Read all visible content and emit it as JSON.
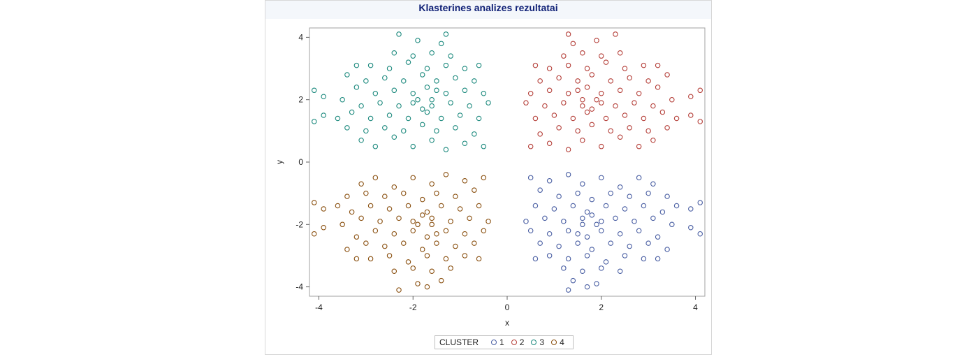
{
  "chart_data": {
    "type": "scatter",
    "title": "Klasterines analizes rezultatai",
    "xlabel": "x",
    "ylabel": "y",
    "xlim": [
      -4.2,
      4.2
    ],
    "ylim": [
      -4.3,
      4.3
    ],
    "xticks": [
      -4,
      -2,
      0,
      2,
      4
    ],
    "yticks": [
      -4,
      -2,
      0,
      2,
      4
    ],
    "grid": false,
    "legend": {
      "title": "CLUSTER",
      "placement": "bottom-center",
      "entries": [
        "1",
        "2",
        "3",
        "4"
      ]
    },
    "series": [
      {
        "name": "1",
        "color": "#4a5fa3",
        "points": [
          [
            0.5,
            -0.5
          ],
          [
            0.9,
            -0.6
          ],
          [
            1.3,
            -0.4
          ],
          [
            1.6,
            -0.7
          ],
          [
            2.0,
            -0.5
          ],
          [
            2.4,
            -0.8
          ],
          [
            2.8,
            -0.5
          ],
          [
            3.1,
            -0.7
          ],
          [
            0.7,
            -0.9
          ],
          [
            1.1,
            -1.1
          ],
          [
            1.5,
            -1.0
          ],
          [
            1.8,
            -1.2
          ],
          [
            2.2,
            -1.0
          ],
          [
            2.6,
            -1.1
          ],
          [
            3.0,
            -1.0
          ],
          [
            3.4,
            -1.1
          ],
          [
            0.6,
            -1.4
          ],
          [
            1.0,
            -1.5
          ],
          [
            1.4,
            -1.4
          ],
          [
            1.7,
            -1.6
          ],
          [
            2.1,
            -1.4
          ],
          [
            2.5,
            -1.5
          ],
          [
            2.9,
            -1.4
          ],
          [
            3.3,
            -1.6
          ],
          [
            3.6,
            -1.4
          ],
          [
            0.8,
            -1.8
          ],
          [
            1.2,
            -1.9
          ],
          [
            1.6,
            -1.8
          ],
          [
            1.9,
            -2.0
          ],
          [
            2.3,
            -1.8
          ],
          [
            2.7,
            -1.9
          ],
          [
            3.1,
            -1.8
          ],
          [
            3.5,
            -2.0
          ],
          [
            0.5,
            -2.2
          ],
          [
            0.9,
            -2.3
          ],
          [
            1.3,
            -2.2
          ],
          [
            1.7,
            -2.4
          ],
          [
            2.0,
            -2.2
          ],
          [
            2.4,
            -2.3
          ],
          [
            2.8,
            -2.2
          ],
          [
            3.2,
            -2.4
          ],
          [
            0.7,
            -2.6
          ],
          [
            1.1,
            -2.7
          ],
          [
            1.5,
            -2.6
          ],
          [
            1.8,
            -2.8
          ],
          [
            2.2,
            -2.6
          ],
          [
            2.6,
            -2.7
          ],
          [
            3.0,
            -2.6
          ],
          [
            3.4,
            -2.8
          ],
          [
            0.9,
            -3.0
          ],
          [
            1.3,
            -3.1
          ],
          [
            1.7,
            -3.0
          ],
          [
            2.1,
            -3.2
          ],
          [
            2.5,
            -3.0
          ],
          [
            2.9,
            -3.1
          ],
          [
            1.2,
            -3.4
          ],
          [
            1.6,
            -3.5
          ],
          [
            2.0,
            -3.4
          ],
          [
            2.4,
            -3.5
          ],
          [
            1.4,
            -3.8
          ],
          [
            1.9,
            -3.9
          ],
          [
            1.6,
            -2.0
          ],
          [
            1.8,
            -1.7
          ],
          [
            1.5,
            -2.3
          ],
          [
            2.0,
            -1.9
          ],
          [
            3.9,
            -1.5
          ],
          [
            4.1,
            -1.3
          ],
          [
            3.9,
            -2.1
          ],
          [
            4.1,
            -2.3
          ],
          [
            1.3,
            -4.1
          ],
          [
            1.7,
            -4.0
          ],
          [
            0.4,
            -1.9
          ],
          [
            0.6,
            -3.1
          ],
          [
            3.2,
            -3.1
          ]
        ]
      },
      {
        "name": "2",
        "color": "#b5403a",
        "points": [
          [
            0.5,
            0.5
          ],
          [
            0.9,
            0.6
          ],
          [
            1.3,
            0.4
          ],
          [
            1.6,
            0.7
          ],
          [
            2.0,
            0.5
          ],
          [
            2.4,
            0.8
          ],
          [
            2.8,
            0.5
          ],
          [
            3.1,
            0.7
          ],
          [
            0.7,
            0.9
          ],
          [
            1.1,
            1.1
          ],
          [
            1.5,
            1.0
          ],
          [
            1.8,
            1.2
          ],
          [
            2.2,
            1.0
          ],
          [
            2.6,
            1.1
          ],
          [
            3.0,
            1.0
          ],
          [
            3.4,
            1.1
          ],
          [
            0.6,
            1.4
          ],
          [
            1.0,
            1.5
          ],
          [
            1.4,
            1.4
          ],
          [
            1.7,
            1.6
          ],
          [
            2.1,
            1.4
          ],
          [
            2.5,
            1.5
          ],
          [
            2.9,
            1.4
          ],
          [
            3.3,
            1.6
          ],
          [
            3.6,
            1.4
          ],
          [
            0.8,
            1.8
          ],
          [
            1.2,
            1.9
          ],
          [
            1.6,
            1.8
          ],
          [
            1.9,
            2.0
          ],
          [
            2.3,
            1.8
          ],
          [
            2.7,
            1.9
          ],
          [
            3.1,
            1.8
          ],
          [
            3.5,
            2.0
          ],
          [
            0.5,
            2.2
          ],
          [
            0.9,
            2.3
          ],
          [
            1.3,
            2.2
          ],
          [
            1.7,
            2.4
          ],
          [
            2.0,
            2.2
          ],
          [
            2.4,
            2.3
          ],
          [
            2.8,
            2.2
          ],
          [
            3.2,
            2.4
          ],
          [
            0.7,
            2.6
          ],
          [
            1.1,
            2.7
          ],
          [
            1.5,
            2.6
          ],
          [
            1.8,
            2.8
          ],
          [
            2.2,
            2.6
          ],
          [
            2.6,
            2.7
          ],
          [
            3.0,
            2.6
          ],
          [
            3.4,
            2.8
          ],
          [
            0.9,
            3.0
          ],
          [
            1.3,
            3.1
          ],
          [
            1.7,
            3.0
          ],
          [
            2.1,
            3.2
          ],
          [
            2.5,
            3.0
          ],
          [
            2.9,
            3.1
          ],
          [
            1.2,
            3.4
          ],
          [
            1.6,
            3.5
          ],
          [
            2.0,
            3.4
          ],
          [
            2.4,
            3.5
          ],
          [
            1.4,
            3.8
          ],
          [
            1.9,
            3.9
          ],
          [
            1.6,
            2.0
          ],
          [
            1.8,
            1.7
          ],
          [
            1.5,
            2.3
          ],
          [
            2.0,
            1.9
          ],
          [
            3.9,
            1.5
          ],
          [
            4.1,
            1.3
          ],
          [
            3.9,
            2.1
          ],
          [
            4.1,
            2.3
          ],
          [
            1.3,
            4.1
          ],
          [
            2.3,
            4.1
          ],
          [
            0.4,
            1.9
          ],
          [
            0.6,
            3.1
          ],
          [
            3.2,
            3.1
          ]
        ]
      },
      {
        "name": "3",
        "color": "#1d8a7e",
        "points": [
          [
            -0.5,
            0.5
          ],
          [
            -0.9,
            0.6
          ],
          [
            -1.3,
            0.4
          ],
          [
            -1.6,
            0.7
          ],
          [
            -2.0,
            0.5
          ],
          [
            -2.4,
            0.8
          ],
          [
            -2.8,
            0.5
          ],
          [
            -3.1,
            0.7
          ],
          [
            -0.7,
            0.9
          ],
          [
            -1.1,
            1.1
          ],
          [
            -1.5,
            1.0
          ],
          [
            -1.8,
            1.2
          ],
          [
            -2.2,
            1.0
          ],
          [
            -2.6,
            1.1
          ],
          [
            -3.0,
            1.0
          ],
          [
            -3.4,
            1.1
          ],
          [
            -0.6,
            1.4
          ],
          [
            -1.0,
            1.5
          ],
          [
            -1.4,
            1.4
          ],
          [
            -1.7,
            1.6
          ],
          [
            -2.1,
            1.4
          ],
          [
            -2.5,
            1.5
          ],
          [
            -2.9,
            1.4
          ],
          [
            -3.3,
            1.6
          ],
          [
            -3.6,
            1.4
          ],
          [
            -0.8,
            1.8
          ],
          [
            -1.2,
            1.9
          ],
          [
            -1.6,
            1.8
          ],
          [
            -1.9,
            2.0
          ],
          [
            -2.3,
            1.8
          ],
          [
            -2.7,
            1.9
          ],
          [
            -3.1,
            1.8
          ],
          [
            -3.5,
            2.0
          ],
          [
            -0.5,
            2.2
          ],
          [
            -0.9,
            2.3
          ],
          [
            -1.3,
            2.2
          ],
          [
            -1.7,
            2.4
          ],
          [
            -2.0,
            2.2
          ],
          [
            -2.4,
            2.3
          ],
          [
            -2.8,
            2.2
          ],
          [
            -3.2,
            2.4
          ],
          [
            -0.7,
            2.6
          ],
          [
            -1.1,
            2.7
          ],
          [
            -1.5,
            2.6
          ],
          [
            -1.8,
            2.8
          ],
          [
            -2.2,
            2.6
          ],
          [
            -2.6,
            2.7
          ],
          [
            -3.0,
            2.6
          ],
          [
            -3.4,
            2.8
          ],
          [
            -0.9,
            3.0
          ],
          [
            -1.3,
            3.1
          ],
          [
            -1.7,
            3.0
          ],
          [
            -2.1,
            3.2
          ],
          [
            -2.5,
            3.0
          ],
          [
            -2.9,
            3.1
          ],
          [
            -1.2,
            3.4
          ],
          [
            -1.6,
            3.5
          ],
          [
            -2.0,
            3.4
          ],
          [
            -2.4,
            3.5
          ],
          [
            -1.4,
            3.8
          ],
          [
            -1.9,
            3.9
          ],
          [
            -1.6,
            2.0
          ],
          [
            -1.8,
            1.7
          ],
          [
            -1.5,
            2.3
          ],
          [
            -2.0,
            1.9
          ],
          [
            -3.9,
            1.5
          ],
          [
            -4.1,
            1.3
          ],
          [
            -3.9,
            2.1
          ],
          [
            -4.1,
            2.3
          ],
          [
            -2.3,
            4.1
          ],
          [
            -1.3,
            4.1
          ],
          [
            -0.4,
            1.9
          ],
          [
            -0.6,
            3.1
          ],
          [
            -3.2,
            3.1
          ]
        ]
      },
      {
        "name": "4",
        "color": "#8a5010",
        "points": [
          [
            -0.5,
            -0.5
          ],
          [
            -0.9,
            -0.6
          ],
          [
            -1.3,
            -0.4
          ],
          [
            -1.6,
            -0.7
          ],
          [
            -2.0,
            -0.5
          ],
          [
            -2.4,
            -0.8
          ],
          [
            -2.8,
            -0.5
          ],
          [
            -3.1,
            -0.7
          ],
          [
            -0.7,
            -0.9
          ],
          [
            -1.1,
            -1.1
          ],
          [
            -1.5,
            -1.0
          ],
          [
            -1.8,
            -1.2
          ],
          [
            -2.2,
            -1.0
          ],
          [
            -2.6,
            -1.1
          ],
          [
            -3.0,
            -1.0
          ],
          [
            -3.4,
            -1.1
          ],
          [
            -0.6,
            -1.4
          ],
          [
            -1.0,
            -1.5
          ],
          [
            -1.4,
            -1.4
          ],
          [
            -1.7,
            -1.6
          ],
          [
            -2.1,
            -1.4
          ],
          [
            -2.5,
            -1.5
          ],
          [
            -2.9,
            -1.4
          ],
          [
            -3.3,
            -1.6
          ],
          [
            -3.6,
            -1.4
          ],
          [
            -0.8,
            -1.8
          ],
          [
            -1.2,
            -1.9
          ],
          [
            -1.6,
            -1.8
          ],
          [
            -1.9,
            -2.0
          ],
          [
            -2.3,
            -1.8
          ],
          [
            -2.7,
            -1.9
          ],
          [
            -3.1,
            -1.8
          ],
          [
            -3.5,
            -2.0
          ],
          [
            -0.5,
            -2.2
          ],
          [
            -0.9,
            -2.3
          ],
          [
            -1.3,
            -2.2
          ],
          [
            -1.7,
            -2.4
          ],
          [
            -2.0,
            -2.2
          ],
          [
            -2.4,
            -2.3
          ],
          [
            -2.8,
            -2.2
          ],
          [
            -3.2,
            -2.4
          ],
          [
            -0.7,
            -2.6
          ],
          [
            -1.1,
            -2.7
          ],
          [
            -1.5,
            -2.6
          ],
          [
            -1.8,
            -2.8
          ],
          [
            -2.2,
            -2.6
          ],
          [
            -2.6,
            -2.7
          ],
          [
            -3.0,
            -2.6
          ],
          [
            -3.4,
            -2.8
          ],
          [
            -0.9,
            -3.0
          ],
          [
            -1.3,
            -3.1
          ],
          [
            -1.7,
            -3.0
          ],
          [
            -2.1,
            -3.2
          ],
          [
            -2.5,
            -3.0
          ],
          [
            -2.9,
            -3.1
          ],
          [
            -1.2,
            -3.4
          ],
          [
            -1.6,
            -3.5
          ],
          [
            -2.0,
            -3.4
          ],
          [
            -2.4,
            -3.5
          ],
          [
            -1.4,
            -3.8
          ],
          [
            -1.9,
            -3.9
          ],
          [
            -1.6,
            -2.0
          ],
          [
            -1.8,
            -1.7
          ],
          [
            -1.5,
            -2.3
          ],
          [
            -2.0,
            -1.9
          ],
          [
            -3.9,
            -1.5
          ],
          [
            -4.1,
            -1.3
          ],
          [
            -3.9,
            -2.1
          ],
          [
            -4.1,
            -2.3
          ],
          [
            -2.3,
            -4.1
          ],
          [
            -1.7,
            -4.0
          ],
          [
            -0.4,
            -1.9
          ],
          [
            -0.6,
            -3.1
          ],
          [
            -3.2,
            -3.1
          ]
        ]
      }
    ]
  }
}
